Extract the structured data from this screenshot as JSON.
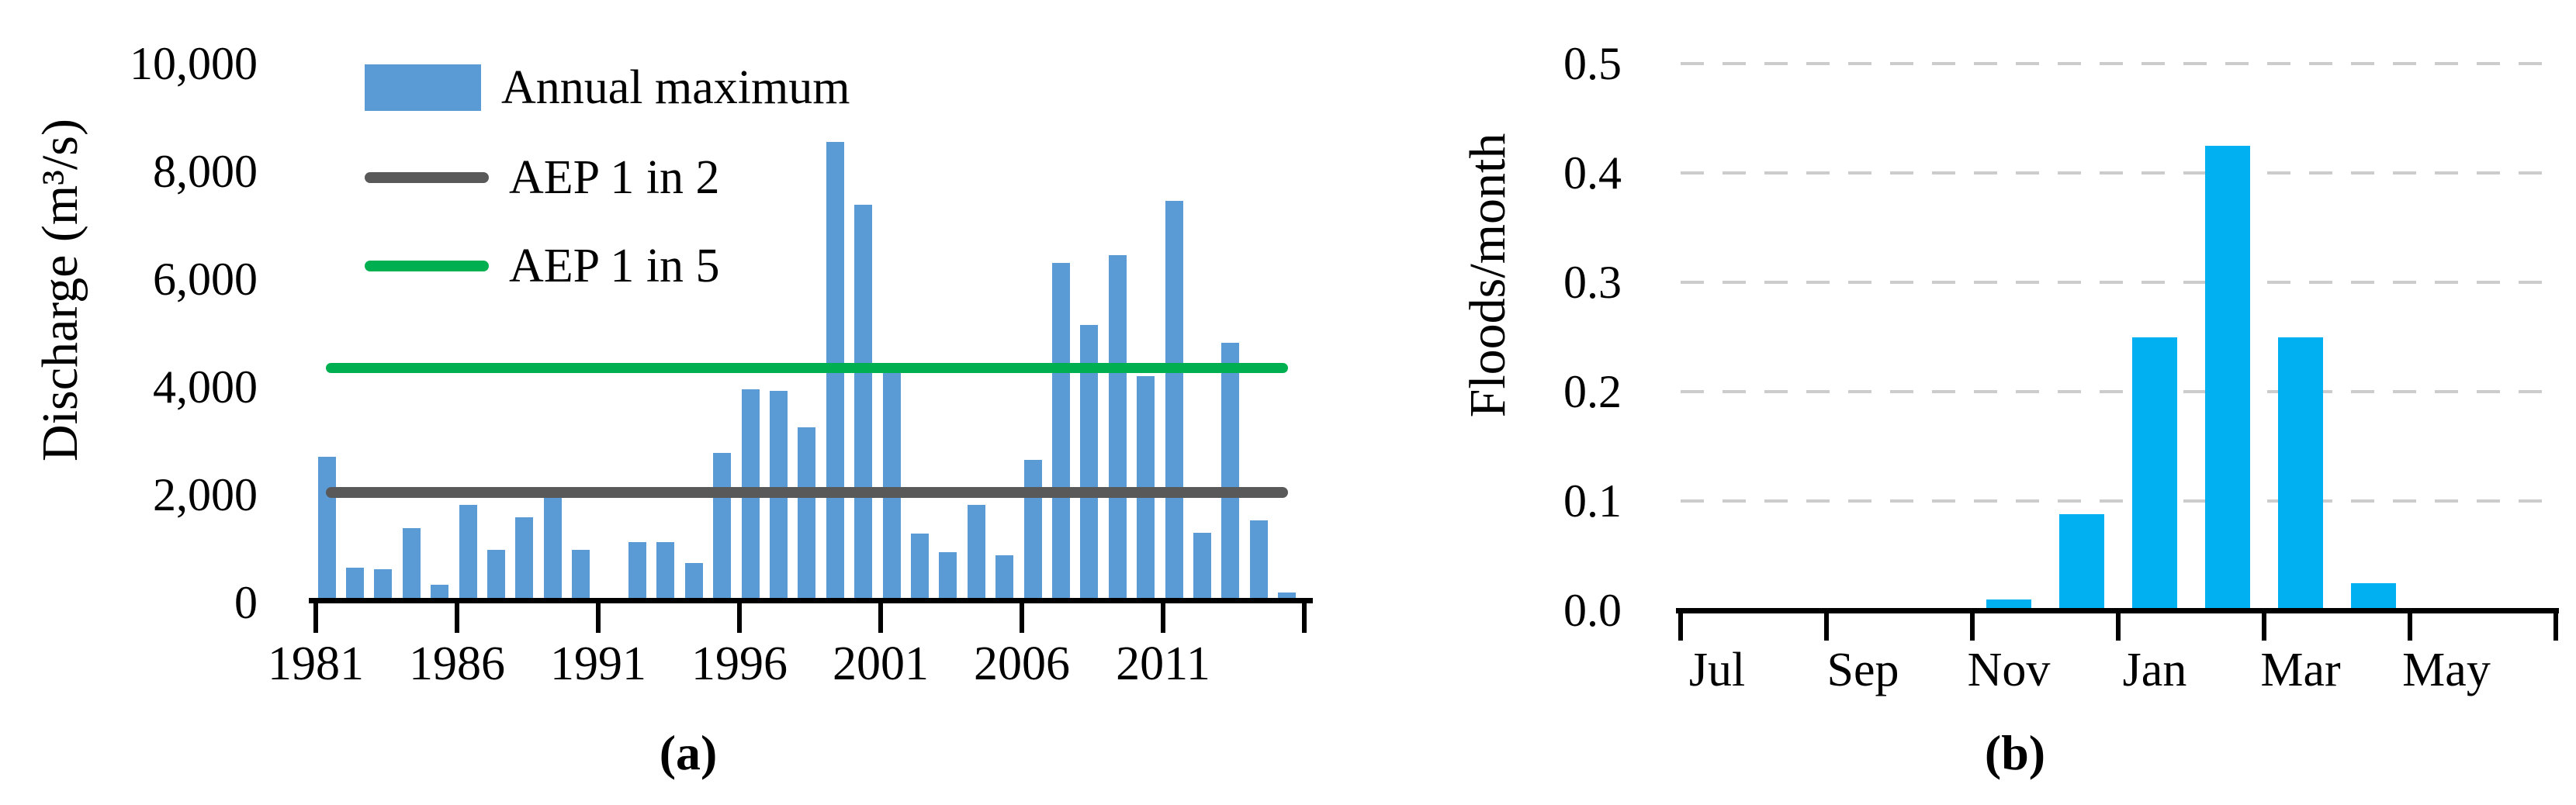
{
  "panel_a": {
    "caption": "(a)",
    "y_axis_title": "Discharge (m³/s)",
    "y_tick_labels": [
      "0",
      "2,000",
      "4,000",
      "6,000",
      "8,000",
      "10,000"
    ],
    "x_tick_labels": [
      "1981",
      "1986",
      "1991",
      "1996",
      "2001",
      "2006",
      "2011"
    ],
    "legend": {
      "items": [
        {
          "label": "Annual maximum",
          "marker": "bar-swatch",
          "color": "#5B9BD5"
        },
        {
          "label": "AEP 1 in 2",
          "marker": "line-swatch",
          "color": "#595959"
        },
        {
          "label": "AEP 1 in 5",
          "marker": "line-swatch",
          "color": "#00B050"
        }
      ]
    }
  },
  "panel_b": {
    "caption": "(b)",
    "y_axis_title": "Floods/month",
    "y_tick_labels": [
      "0.0",
      "0.1",
      "0.2",
      "0.3",
      "0.4",
      "0.5"
    ],
    "x_tick_labels": [
      "Jul",
      "Sep",
      "Nov",
      "Jan",
      "Mar",
      "May"
    ]
  },
  "colors": {
    "annual_max_bar": "#5B9BD5",
    "aep_1_in_2_line": "#595959",
    "aep_1_in_5_line": "#00B050",
    "monthly_bar": "#00B0F0",
    "axis": "#000000",
    "gridline": "#cccccc"
  },
  "chart_data": [
    {
      "type": "bar",
      "title": "Annual maximum discharge with AEP thresholds",
      "xlabel": "",
      "ylabel": "Discharge (m³/s)",
      "x": [
        1981,
        1982,
        1983,
        1984,
        1985,
        1986,
        1987,
        1988,
        1989,
        1990,
        1991,
        1992,
        1993,
        1994,
        1995,
        1996,
        1997,
        1998,
        1999,
        2000,
        2001,
        2002,
        2003,
        2004,
        2005,
        2006,
        2007,
        2008,
        2009,
        2010,
        2011,
        2012,
        2013,
        2014,
        2015
      ],
      "values": [
        2700,
        650,
        620,
        1380,
        330,
        1820,
        980,
        1580,
        1950,
        980,
        60,
        1120,
        1120,
        730,
        2780,
        3960,
        3930,
        3250,
        8550,
        7380,
        4400,
        1280,
        940,
        1820,
        880,
        2650,
        6300,
        5150,
        6450,
        4200,
        7450,
        1300,
        4820,
        1520,
        180
      ],
      "series_name": "Annual maximum",
      "ylim": [
        0,
        10000
      ],
      "yticks": [
        0,
        2000,
        4000,
        6000,
        8000,
        10000
      ],
      "xticks": [
        1981,
        1986,
        1991,
        1996,
        2001,
        2006,
        2011,
        2016
      ],
      "xtick_labeled": [
        1981,
        1986,
        1991,
        1996,
        2001,
        2006,
        2011
      ],
      "hlines": [
        {
          "name": "AEP 1 in 2",
          "value": 2050,
          "color": "#595959"
        },
        {
          "name": "AEP 1 in 5",
          "value": 4350,
          "color": "#00B050"
        }
      ],
      "legend_position": "top-left",
      "grid": false
    },
    {
      "type": "bar",
      "title": "Flood seasonality",
      "xlabel": "",
      "ylabel": "Floods/month",
      "categories": [
        "Jul",
        "Aug",
        "Sep",
        "Oct",
        "Nov",
        "Dec",
        "Jan",
        "Feb",
        "Mar",
        "Apr",
        "May",
        "Jun"
      ],
      "values": [
        0,
        0,
        0,
        0,
        0.01,
        0.088,
        0.25,
        0.425,
        0.25,
        0.025,
        0,
        0
      ],
      "ylim": [
        0,
        0.5
      ],
      "yticks": [
        0.0,
        0.1,
        0.2,
        0.3,
        0.4,
        0.5
      ],
      "xtick_labels": [
        "Jul",
        "Sep",
        "Nov",
        "Jan",
        "Mar",
        "May"
      ],
      "grid": true,
      "grid_style": "dashed"
    }
  ]
}
